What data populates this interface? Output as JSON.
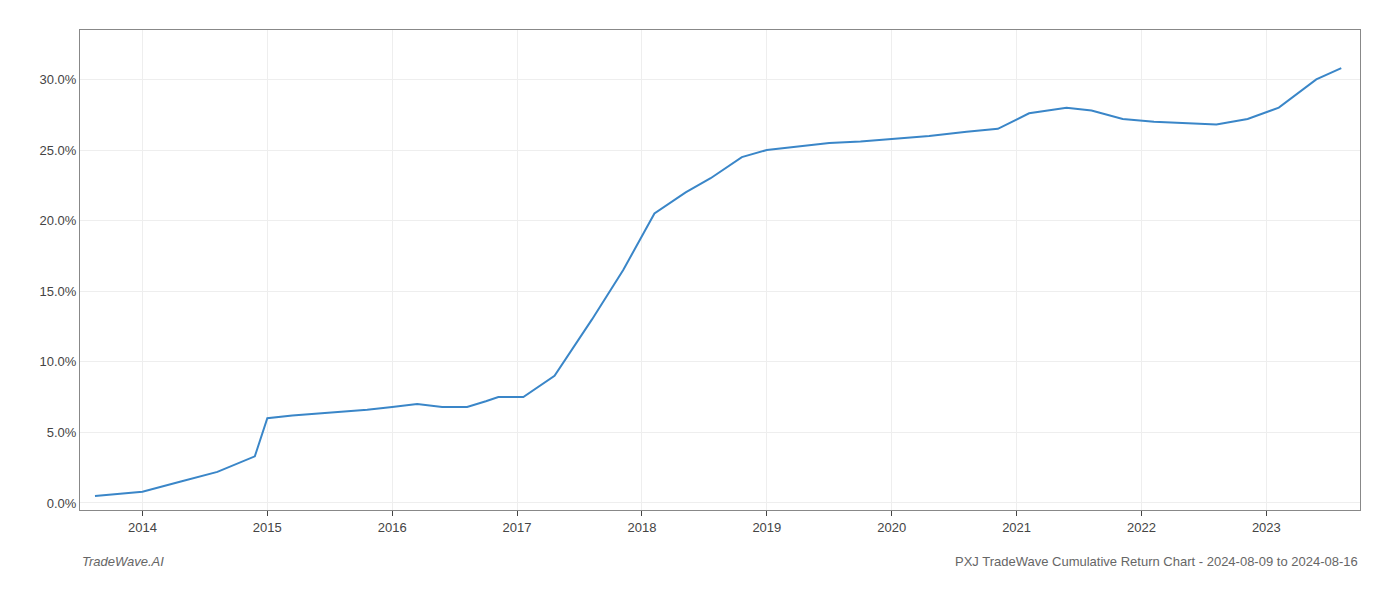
{
  "chart_data": {
    "type": "line",
    "x": [
      2013.62,
      2014.0,
      2014.3,
      2014.6,
      2014.9,
      2015.0,
      2015.2,
      2015.5,
      2015.8,
      2016.0,
      2016.2,
      2016.4,
      2016.6,
      2016.75,
      2016.85,
      2017.05,
      2017.3,
      2017.6,
      2017.85,
      2018.1,
      2018.35,
      2018.55,
      2018.8,
      2019.0,
      2019.2,
      2019.5,
      2019.75,
      2020.0,
      2020.3,
      2020.6,
      2020.85,
      2021.1,
      2021.4,
      2021.6,
      2021.85,
      2022.1,
      2022.35,
      2022.6,
      2022.85,
      2023.1,
      2023.4,
      2023.6
    ],
    "values": [
      0.005,
      0.008,
      0.015,
      0.022,
      0.033,
      0.06,
      0.062,
      0.064,
      0.066,
      0.068,
      0.07,
      0.068,
      0.068,
      0.072,
      0.075,
      0.075,
      0.09,
      0.13,
      0.165,
      0.205,
      0.22,
      0.23,
      0.245,
      0.25,
      0.252,
      0.255,
      0.256,
      0.258,
      0.26,
      0.263,
      0.265,
      0.276,
      0.28,
      0.278,
      0.272,
      0.27,
      0.269,
      0.268,
      0.272,
      0.28,
      0.3,
      0.308
    ],
    "color": "#3a86c8",
    "xlim": [
      2013.5,
      2023.75
    ],
    "xticks": [
      2014,
      2015,
      2016,
      2017,
      2018,
      2019,
      2020,
      2021,
      2022,
      2023
    ],
    "ylim": [
      -0.005,
      0.335
    ],
    "yticks": [
      {
        "value": 0.0,
        "label": "0.0%"
      },
      {
        "value": 0.05,
        "label": "5.0%"
      },
      {
        "value": 0.1,
        "label": "10.0%"
      },
      {
        "value": 0.15,
        "label": "15.0%"
      },
      {
        "value": 0.2,
        "label": "20.0%"
      },
      {
        "value": 0.25,
        "label": "25.0%"
      },
      {
        "value": 0.3,
        "label": "30.0%"
      }
    ],
    "grid": true,
    "annotations": [
      "TradeWave.AI",
      "PXJ TradeWave Cumulative Return Chart - 2024-08-09 to 2024-08-16"
    ]
  }
}
